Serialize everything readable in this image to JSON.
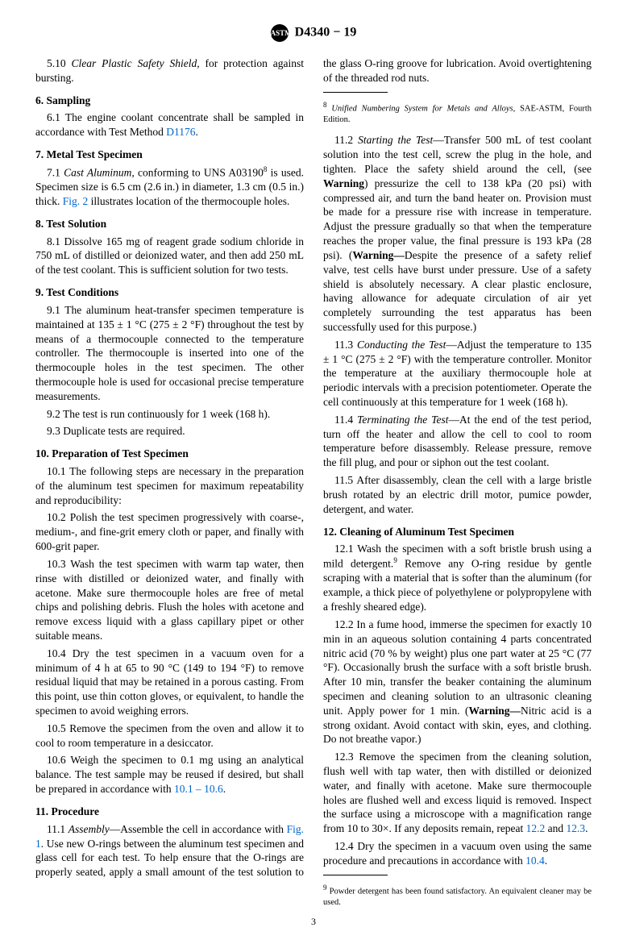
{
  "header_logo": "ASTM",
  "header_title": "D4340 − 19",
  "p5_10": "5.10 <span class='italic'>Clear Plastic Safety Shield,</span> for protection against bursting.",
  "s6_title": "6. Sampling",
  "p6_1": "6.1 The engine coolant concentrate shall be sampled in accordance with Test Method <span class='link'>D1176</span>.",
  "s7_title": "7. Metal Test Specimen",
  "p7_1": "7.1 <span class='italic'>Cast Aluminum,</span> conforming to UNS A03190<sup>8</sup> is used. Specimen size is 6.5 cm (2.6 in.) in diameter, 1.3 cm (0.5 in.) thick. <span class='link'>Fig. 2</span> illustrates location of the thermocouple holes.",
  "s8_title": "8. Test Solution",
  "p8_1": "8.1 Dissolve 165 mg of reagent grade sodium chloride in 750 mL of distilled or deionized water, and then add 250 mL of the test coolant. This is sufficient solution for two tests.",
  "s9_title": "9. Test Conditions",
  "p9_1": "9.1 The aluminum heat-transfer specimen temperature is maintained at 135 ± 1 °C (275 ± 2 °F) throughout the test by means of a thermocouple connected to the temperature controller. The thermocouple is inserted into one of the thermocouple holes in the test specimen. The other thermocouple hole is used for occasional precise temperature measurements.",
  "p9_2": "9.2 The test is run continuously for 1 week (168 h).",
  "p9_3": "9.3 Duplicate tests are required.",
  "s10_title": "10. Preparation of Test Specimen",
  "p10_1": "10.1 The following steps are necessary in the preparation of the aluminum test specimen for maximum repeatability and reproducibility:",
  "p10_2": "10.2 Polish the test specimen progressively with coarse-, medium-, and fine-grit emery cloth or paper, and finally with 600-grit paper.",
  "p10_3": "10.3 Wash the test specimen with warm tap water, then rinse with distilled or deionized water, and finally with acetone. Make sure thermocouple holes are free of metal chips and polishing debris. Flush the holes with acetone and remove excess liquid with a glass capillary pipet or other suitable means.",
  "p10_4": "10.4 Dry the test specimen in a vacuum oven for a minimum of 4 h at 65 to 90 °C (149 to 194 °F) to remove residual liquid that may be retained in a porous casting. From this point, use thin cotton gloves, or equivalent, to handle the specimen to avoid weighing errors.",
  "p10_5": "10.5 Remove the specimen from the oven and allow it to cool to room temperature in a desiccator.",
  "p10_6": "10.6 Weigh the specimen to 0.1 mg using an analytical balance. The test sample may be reused if desired, but shall be prepared in accordance with <span class='link'>10.1 – 10.6</span>.",
  "s11_title": "11. Procedure",
  "p11_1": "11.1 <span class='italic'>Assembly</span>—Assemble the cell in accordance with <span class='link'>Fig. 1</span>. Use new O-rings between the aluminum test specimen and glass cell for each test. To help ensure that the O-rings are properly seated, apply a small amount of the test solution to the glass O-ring groove for lubrication. Avoid overtightening of the threaded rod nuts.",
  "p11_2": "11.2 <span class='italic'>Starting the Test</span>—Transfer 500 mL of test coolant solution into the test cell, screw the plug in the hole, and tighten. Place the safety shield around the cell, (see <b>Warning</b>) pressurize the cell to 138 kPa (20 psi) with compressed air, and turn the band heater on. Provision must be made for a pressure rise with increase in temperature. Adjust the pressure gradually so that when the temperature reaches the proper value, the final pressure is 193 kPa (28 psi). (<b>Warning—</b>Despite the presence of a safety relief valve, test cells have burst under pressure. Use of a safety shield is absolutely necessary. A clear plastic enclosure, having allowance for adequate circulation of air yet completely surrounding the test apparatus has been successfully used for this purpose.)",
  "p11_3": "11.3 <span class='italic'>Conducting the Test</span>—Adjust the temperature to 135 ± 1 °C (275 ± 2 °F) with the temperature controller. Monitor the temperature at the auxiliary thermocouple hole at periodic intervals with a precision potentiometer. Operate the cell continuously at this temperature for 1 week (168 h).",
  "p11_4": "11.4 <span class='italic'>Terminating the Test</span>—At the end of the test period, turn off the heater and allow the cell to cool to room temperature before disassembly. Release pressure, remove the fill plug, and pour or siphon out the test coolant.",
  "p11_5": "11.5 After disassembly, clean the cell with a large bristle brush rotated by an electric drill motor, pumice powder, detergent, and water.",
  "s12_title": "12. Cleaning of Aluminum Test Specimen",
  "p12_1": "12.1 Wash the specimen with a soft bristle brush using a mild detergent.<sup>9</sup> Remove any O-ring residue by gentle scraping with a material that is softer than the aluminum (for example, a thick piece of polyethylene or polypropylene with a freshly sheared edge).",
  "p12_2": "12.2 In a fume hood, immerse the specimen for exactly 10 min in an aqueous solution containing 4 parts concentrated nitric acid (70 % by weight) plus one part water at 25 °C (77 °F). Occasionally brush the surface with a soft bristle brush. After 10 min, transfer the beaker containing the aluminum specimen and cleaning solution to an ultrasonic cleaning unit. Apply power for 1 min. (<b>Warning—</b>Nitric acid is a strong oxidant. Avoid contact with skin, eyes, and clothing. Do not breathe vapor.)",
  "p12_3": "12.3 Remove the specimen from the cleaning solution, flush well with tap water, then with distilled or deionized water, and finally with acetone. Make sure thermocouple holes are flushed well and excess liquid is removed. Inspect the surface using a microscope with a magnification range from 10 to 30×. If any deposits remain, repeat <span class='link'>12.2</span> and <span class='link'>12.3</span>.",
  "p12_4": "12.4 Dry the specimen in a vacuum oven using the same procedure and precautions in accordance with <span class='link'>10.4</span>.",
  "footnote8": "<sup>8</sup> <span class='italic'>Unified Numbering System for Metals and Alloys</span>, SAE-ASTM, Fourth Edition.",
  "footnote9": "<sup>9</sup> Powder detergent has been found satisfactory. An equivalent cleaner may be used.",
  "pagenum": "3"
}
